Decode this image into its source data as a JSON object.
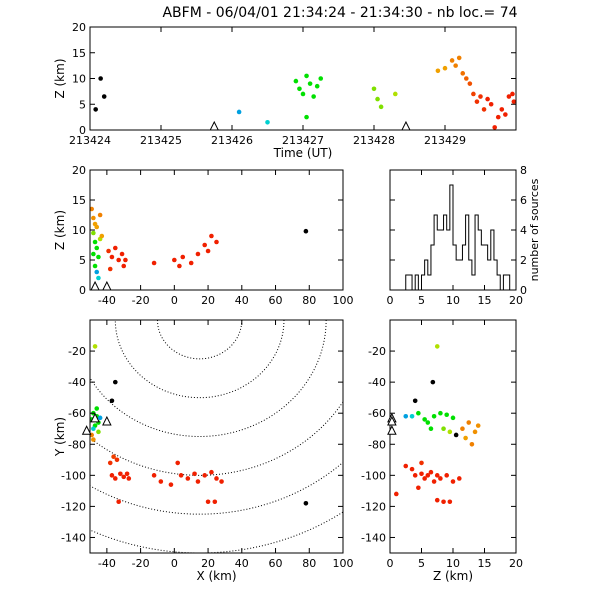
{
  "title": "ABFM - 06/04/01 21:34:24 - 21:34:30 - nb loc.=      74",
  "colors": {
    "axis": "#000000",
    "stations": "#000000"
  },
  "chart_data": [
    {
      "id": "time_height",
      "type": "scatter",
      "xlabel": "Time (UT)",
      "ylabel": "Z (km)",
      "xlim": [
        213424,
        213430
      ],
      "ylim": [
        0,
        20
      ],
      "xticks": [
        213424,
        213425,
        213426,
        213427,
        213428,
        213429
      ],
      "yticks": [
        0,
        5,
        10,
        15,
        20
      ],
      "stations_x": [
        213425.75,
        213428.45
      ],
      "points": [
        {
          "x": 213424.08,
          "y": 4.0,
          "c": "#000000"
        },
        {
          "x": 213424.15,
          "y": 10.0,
          "c": "#000000"
        },
        {
          "x": 213424.2,
          "y": 6.5,
          "c": "#000000"
        },
        {
          "x": 213426.1,
          "y": 3.5,
          "c": "#00a0e0"
        },
        {
          "x": 213426.5,
          "y": 1.5,
          "c": "#00d0d0"
        },
        {
          "x": 213426.9,
          "y": 9.5,
          "c": "#00e000"
        },
        {
          "x": 213426.95,
          "y": 8.0,
          "c": "#00e000"
        },
        {
          "x": 213427.0,
          "y": 7.0,
          "c": "#00e000"
        },
        {
          "x": 213427.05,
          "y": 10.5,
          "c": "#00e000"
        },
        {
          "x": 213427.1,
          "y": 9.0,
          "c": "#00e000"
        },
        {
          "x": 213427.15,
          "y": 6.5,
          "c": "#00e000"
        },
        {
          "x": 213427.2,
          "y": 8.5,
          "c": "#00e000"
        },
        {
          "x": 213427.25,
          "y": 10.0,
          "c": "#00e000"
        },
        {
          "x": 213427.05,
          "y": 2.5,
          "c": "#00e000"
        },
        {
          "x": 213428.0,
          "y": 8.0,
          "c": "#80e000"
        },
        {
          "x": 213428.05,
          "y": 6.0,
          "c": "#80e000"
        },
        {
          "x": 213428.1,
          "y": 4.5,
          "c": "#80e000"
        },
        {
          "x": 213428.3,
          "y": 7.0,
          "c": "#b0e000"
        },
        {
          "x": 213428.9,
          "y": 11.5,
          "c": "#f0a000"
        },
        {
          "x": 213429.0,
          "y": 12.0,
          "c": "#f0a000"
        },
        {
          "x": 213429.1,
          "y": 13.5,
          "c": "#f08000"
        },
        {
          "x": 213429.15,
          "y": 12.5,
          "c": "#f08000"
        },
        {
          "x": 213429.25,
          "y": 11.0,
          "c": "#f07000"
        },
        {
          "x": 213429.3,
          "y": 10.0,
          "c": "#f06000"
        },
        {
          "x": 213429.2,
          "y": 14.0,
          "c": "#f08000"
        },
        {
          "x": 213429.35,
          "y": 9.0,
          "c": "#f05000"
        },
        {
          "x": 213429.4,
          "y": 7.0,
          "c": "#f04000"
        },
        {
          "x": 213429.45,
          "y": 5.5,
          "c": "#f03000"
        },
        {
          "x": 213429.5,
          "y": 6.5,
          "c": "#f03000"
        },
        {
          "x": 213429.55,
          "y": 4.0,
          "c": "#f03000"
        },
        {
          "x": 213429.6,
          "y": 6.0,
          "c": "#f02000"
        },
        {
          "x": 213429.65,
          "y": 5.0,
          "c": "#f02000"
        },
        {
          "x": 213429.7,
          "y": 0.5,
          "c": "#f02000"
        },
        {
          "x": 213429.75,
          "y": 2.5,
          "c": "#f02000"
        },
        {
          "x": 213429.8,
          "y": 4.0,
          "c": "#f02000"
        },
        {
          "x": 213429.85,
          "y": 3.0,
          "c": "#f02000"
        },
        {
          "x": 213429.9,
          "y": 6.5,
          "c": "#f02000"
        },
        {
          "x": 213429.95,
          "y": 7.0,
          "c": "#f02000"
        },
        {
          "x": 213429.97,
          "y": 5.5,
          "c": "#f02000"
        }
      ]
    },
    {
      "id": "x_z",
      "type": "scatter",
      "xlabel": "",
      "ylabel": "Z (km)",
      "xlim": [
        -50,
        100
      ],
      "ylim": [
        0,
        20
      ],
      "xticks": [
        -40,
        -20,
        0,
        20,
        40,
        60,
        80,
        100
      ],
      "yticks": [
        0,
        5,
        10,
        15,
        20
      ],
      "stations_x": [
        -47,
        -40
      ],
      "points": [
        {
          "x": -49,
          "y": 13.5,
          "c": "#f08000"
        },
        {
          "x": -48,
          "y": 12.0,
          "c": "#f09000"
        },
        {
          "x": -47,
          "y": 11.0,
          "c": "#f0a000"
        },
        {
          "x": -46,
          "y": 10.5,
          "c": "#f0a000"
        },
        {
          "x": -48,
          "y": 9.5,
          "c": "#80e000"
        },
        {
          "x": -47,
          "y": 8.0,
          "c": "#00e000"
        },
        {
          "x": -46,
          "y": 7.0,
          "c": "#00e000"
        },
        {
          "x": -48,
          "y": 6.0,
          "c": "#00e000"
        },
        {
          "x": -45,
          "y": 5.5,
          "c": "#00e000"
        },
        {
          "x": -47,
          "y": 4.0,
          "c": "#00e000"
        },
        {
          "x": -46,
          "y": 3.0,
          "c": "#00a0e0"
        },
        {
          "x": -45,
          "y": 2.0,
          "c": "#00d0d0"
        },
        {
          "x": -44,
          "y": 8.5,
          "c": "#b0e000"
        },
        {
          "x": -43,
          "y": 9.0,
          "c": "#f0a000"
        },
        {
          "x": -44,
          "y": 12.5,
          "c": "#f08000"
        },
        {
          "x": -39,
          "y": 6.5,
          "c": "#f03000"
        },
        {
          "x": -37,
          "y": 5.5,
          "c": "#f02000"
        },
        {
          "x": -35,
          "y": 7.0,
          "c": "#f02000"
        },
        {
          "x": -33,
          "y": 5.0,
          "c": "#f02000"
        },
        {
          "x": -31,
          "y": 6.0,
          "c": "#f02000"
        },
        {
          "x": -30,
          "y": 4.0,
          "c": "#f02000"
        },
        {
          "x": -29,
          "y": 5.0,
          "c": "#f02000"
        },
        {
          "x": -38,
          "y": 3.5,
          "c": "#f03000"
        },
        {
          "x": -12,
          "y": 4.5,
          "c": "#f02000"
        },
        {
          "x": 0,
          "y": 5.0,
          "c": "#f02000"
        },
        {
          "x": 3,
          "y": 4.0,
          "c": "#f02000"
        },
        {
          "x": 5,
          "y": 5.5,
          "c": "#f02000"
        },
        {
          "x": 10,
          "y": 4.5,
          "c": "#f02000"
        },
        {
          "x": 14,
          "y": 6.0,
          "c": "#f02000"
        },
        {
          "x": 18,
          "y": 7.5,
          "c": "#f02000"
        },
        {
          "x": 20,
          "y": 6.5,
          "c": "#f02000"
        },
        {
          "x": 22,
          "y": 9.0,
          "c": "#f02000"
        },
        {
          "x": 25,
          "y": 8.0,
          "c": "#f02000"
        },
        {
          "x": 78,
          "y": 9.8,
          "c": "#000000"
        }
      ]
    },
    {
      "id": "histogram",
      "type": "bar",
      "xlabel": "",
      "ylabel": "number of sources",
      "xlim": [
        0,
        20
      ],
      "ylim": [
        0,
        8
      ],
      "xticks": [
        0,
        5,
        10,
        15,
        20
      ],
      "yticks": [
        0,
        2,
        4,
        6,
        8
      ],
      "bin_width": 0.5,
      "bin_start": 0,
      "counts": [
        0,
        0,
        0,
        0,
        0,
        1,
        1,
        0,
        1,
        0,
        1,
        2,
        1,
        3,
        5,
        4,
        4,
        5,
        4,
        7,
        3,
        2,
        2,
        3,
        5,
        2,
        1,
        5,
        4,
        3,
        3,
        2,
        4,
        2,
        1,
        0,
        1,
        1,
        0,
        0
      ]
    },
    {
      "id": "x_y",
      "type": "scatter",
      "xlabel": "X (km)",
      "ylabel": "Y (km)",
      "xlim": [
        -50,
        100
      ],
      "ylim": [
        -150,
        0
      ],
      "xticks": [
        -40,
        -20,
        0,
        20,
        40,
        60,
        80,
        100
      ],
      "yticks": [
        -140,
        -120,
        -100,
        -80,
        -60,
        -40,
        -20
      ],
      "stations": [
        [
          -47,
          -63
        ],
        [
          -40,
          -65
        ],
        [
          -52,
          -71
        ]
      ],
      "points": [
        {
          "x": -47,
          "y": -17,
          "c": "#b0e000"
        },
        {
          "x": -35,
          "y": -40,
          "c": "#000000"
        },
        {
          "x": -37,
          "y": -52,
          "c": "#000000"
        },
        {
          "x": -48,
          "y": -60,
          "c": "#00e000"
        },
        {
          "x": -46,
          "y": -62,
          "c": "#00e000"
        },
        {
          "x": -49,
          "y": -64,
          "c": "#00e000"
        },
        {
          "x": -45,
          "y": -66,
          "c": "#00e000"
        },
        {
          "x": -47,
          "y": -68,
          "c": "#00e000"
        },
        {
          "x": -44,
          "y": -63,
          "c": "#00a0e0"
        },
        {
          "x": -48,
          "y": -70,
          "c": "#00d0d0"
        },
        {
          "x": -46,
          "y": -57,
          "c": "#00e000"
        },
        {
          "x": -49,
          "y": -74,
          "c": "#f08000"
        },
        {
          "x": -48,
          "y": -77,
          "c": "#f09000"
        },
        {
          "x": -45,
          "y": -72,
          "c": "#80e000"
        },
        {
          "x": -36,
          "y": -88,
          "c": "#f04000"
        },
        {
          "x": -34,
          "y": -90,
          "c": "#f03000"
        },
        {
          "x": -38,
          "y": -92,
          "c": "#f03000"
        },
        {
          "x": -37,
          "y": -100,
          "c": "#f02000"
        },
        {
          "x": -35,
          "y": -102,
          "c": "#f02000"
        },
        {
          "x": -32,
          "y": -99,
          "c": "#f02000"
        },
        {
          "x": -30,
          "y": -101,
          "c": "#f02000"
        },
        {
          "x": -28,
          "y": -99,
          "c": "#f02000"
        },
        {
          "x": -27,
          "y": -102,
          "c": "#f02000"
        },
        {
          "x": -33,
          "y": -117,
          "c": "#f02000"
        },
        {
          "x": -12,
          "y": -100,
          "c": "#f02000"
        },
        {
          "x": -8,
          "y": -104,
          "c": "#f02000"
        },
        {
          "x": -2,
          "y": -106,
          "c": "#f02000"
        },
        {
          "x": 2,
          "y": -92,
          "c": "#f02000"
        },
        {
          "x": 4,
          "y": -100,
          "c": "#f02000"
        },
        {
          "x": 8,
          "y": -102,
          "c": "#f02000"
        },
        {
          "x": 12,
          "y": -99,
          "c": "#f02000"
        },
        {
          "x": 14,
          "y": -104,
          "c": "#f02000"
        },
        {
          "x": 18,
          "y": -100,
          "c": "#f02000"
        },
        {
          "x": 22,
          "y": -98,
          "c": "#f02000"
        },
        {
          "x": 25,
          "y": -102,
          "c": "#f02000"
        },
        {
          "x": 28,
          "y": -104,
          "c": "#f02000"
        },
        {
          "x": 20,
          "y": -117,
          "c": "#f02000"
        },
        {
          "x": 24,
          "y": -117,
          "c": "#f02000"
        },
        {
          "x": 78,
          "y": -118,
          "c": "#000000"
        }
      ],
      "range_rings_km": [
        25,
        50,
        75,
        100,
        125,
        150
      ],
      "range_center": [
        15,
        0
      ]
    },
    {
      "id": "z_y",
      "type": "scatter",
      "xlabel": "Z (km)",
      "ylabel": "",
      "xlim": [
        0,
        20
      ],
      "ylim": [
        -150,
        0
      ],
      "xticks": [
        0,
        5,
        10,
        15,
        20
      ],
      "yticks": [
        -140,
        -120,
        -100,
        -80,
        -60,
        -40,
        -20
      ],
      "stations": [
        [
          0.3,
          -63
        ],
        [
          0.3,
          -65
        ],
        [
          0.3,
          -71
        ]
      ],
      "points": [
        {
          "x": 7.5,
          "y": -17,
          "c": "#b0e000"
        },
        {
          "x": 6.8,
          "y": -40,
          "c": "#000000"
        },
        {
          "x": 4.0,
          "y": -52,
          "c": "#000000"
        },
        {
          "x": 2.5,
          "y": -62,
          "c": "#00a0e0"
        },
        {
          "x": 3.5,
          "y": -62,
          "c": "#00d0d0"
        },
        {
          "x": 4.5,
          "y": -60,
          "c": "#00e000"
        },
        {
          "x": 5.5,
          "y": -64,
          "c": "#00e000"
        },
        {
          "x": 6.0,
          "y": -66,
          "c": "#00e000"
        },
        {
          "x": 7.0,
          "y": -62,
          "c": "#00e000"
        },
        {
          "x": 8.0,
          "y": -60,
          "c": "#00e000"
        },
        {
          "x": 9.0,
          "y": -61,
          "c": "#00e000"
        },
        {
          "x": 10.0,
          "y": -63,
          "c": "#00e000"
        },
        {
          "x": 6.5,
          "y": -70,
          "c": "#00e000"
        },
        {
          "x": 8.5,
          "y": -70,
          "c": "#80e000"
        },
        {
          "x": 9.5,
          "y": -72,
          "c": "#b0e000"
        },
        {
          "x": 10.5,
          "y": -74,
          "c": "#000000"
        },
        {
          "x": 11.5,
          "y": -70,
          "c": "#f08000"
        },
        {
          "x": 12.5,
          "y": -66,
          "c": "#f08000"
        },
        {
          "x": 13.5,
          "y": -72,
          "c": "#f09000"
        },
        {
          "x": 14.0,
          "y": -68,
          "c": "#f09000"
        },
        {
          "x": 12.0,
          "y": -76,
          "c": "#f0a000"
        },
        {
          "x": 13.0,
          "y": -80,
          "c": "#f08000"
        },
        {
          "x": 2.5,
          "y": -94,
          "c": "#f02000"
        },
        {
          "x": 3.5,
          "y": -96,
          "c": "#f02000"
        },
        {
          "x": 4.0,
          "y": -100,
          "c": "#f02000"
        },
        {
          "x": 5.0,
          "y": -99,
          "c": "#f02000"
        },
        {
          "x": 5.5,
          "y": -102,
          "c": "#f02000"
        },
        {
          "x": 6.0,
          "y": -100,
          "c": "#f02000"
        },
        {
          "x": 6.5,
          "y": -98,
          "c": "#f02000"
        },
        {
          "x": 7.0,
          "y": -104,
          "c": "#f02000"
        },
        {
          "x": 7.5,
          "y": -100,
          "c": "#f02000"
        },
        {
          "x": 8.0,
          "y": -102,
          "c": "#f02000"
        },
        {
          "x": 9.0,
          "y": -100,
          "c": "#f02000"
        },
        {
          "x": 10.0,
          "y": -104,
          "c": "#f02000"
        },
        {
          "x": 5.0,
          "y": -92,
          "c": "#f03000"
        },
        {
          "x": 1.0,
          "y": -112,
          "c": "#f02000"
        },
        {
          "x": 4.5,
          "y": -108,
          "c": "#f02000"
        },
        {
          "x": 7.5,
          "y": -116,
          "c": "#f02000"
        },
        {
          "x": 8.5,
          "y": -117,
          "c": "#f02000"
        },
        {
          "x": 9.5,
          "y": -117,
          "c": "#f02000"
        },
        {
          "x": 11.0,
          "y": -102,
          "c": "#f02000"
        }
      ]
    }
  ]
}
